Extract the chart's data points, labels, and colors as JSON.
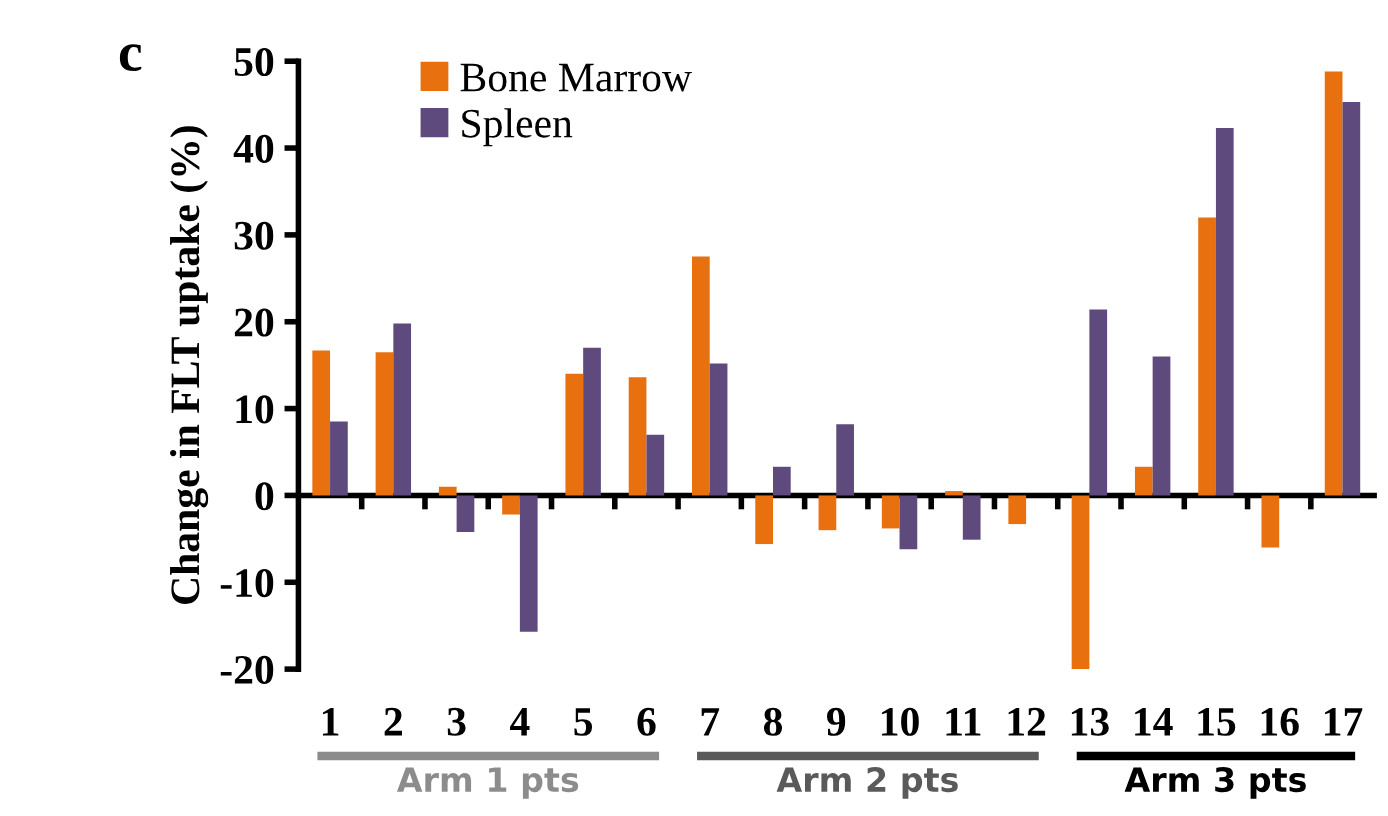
{
  "chart_data": {
    "type": "bar",
    "title": "c",
    "ylabel": "Change in FLT uptake (%)",
    "categories": [
      "1",
      "2",
      "3",
      "4",
      "5",
      "6",
      "7",
      "8",
      "9",
      "10",
      "11",
      "12",
      "13",
      "14",
      "15",
      "16",
      "17"
    ],
    "series": [
      {
        "name": "Bone Marrow",
        "color": "#e8700e",
        "values": [
          16.7,
          16.5,
          1,
          -2.2,
          14,
          13.6,
          27.5,
          -5.6,
          -4,
          -3.8,
          0.5,
          -3.3,
          -20,
          3.3,
          32,
          -6,
          48.8
        ]
      },
      {
        "name": "Spleen",
        "color": "#5f4a7e",
        "values": [
          8.5,
          19.8,
          -4.2,
          -15.7,
          17,
          7,
          15.2,
          3.3,
          8.2,
          -6.2,
          -5.1,
          null,
          21.4,
          16,
          42.3,
          null,
          45.3
        ]
      }
    ],
    "ylim": [
      -20,
      50
    ],
    "yticks": [
      -20,
      -10,
      0,
      10,
      20,
      30,
      40,
      50
    ],
    "legend": "top left",
    "annotations": [
      "Arm 1 pts",
      "Arm 2 pts",
      "Arm 3 pts"
    ]
  }
}
